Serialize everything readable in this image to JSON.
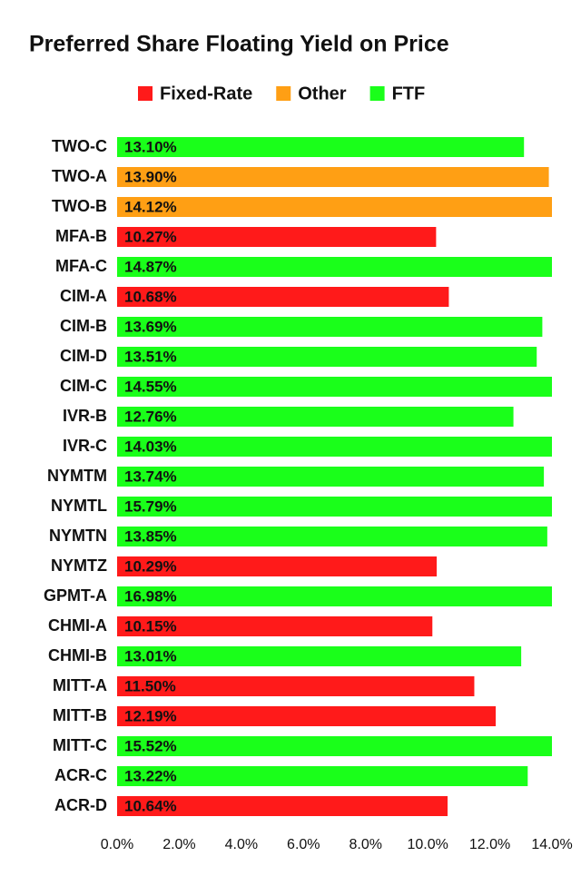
{
  "chart_data": {
    "type": "bar",
    "orientation": "horizontal",
    "title": "Preferred Share Floating Yield on Price",
    "categories": [
      "TWO-C",
      "TWO-A",
      "TWO-B",
      "MFA-B",
      "MFA-C",
      "CIM-A",
      "CIM-B",
      "CIM-D",
      "CIM-C",
      "IVR-B",
      "IVR-C",
      "NYMTM",
      "NYMTL",
      "NYMTN",
      "NYMTZ",
      "GPMT-A",
      "CHMI-A",
      "CHMI-B",
      "MITT-A",
      "MITT-B",
      "MITT-C",
      "ACR-C",
      "ACR-D"
    ],
    "series": [
      {
        "name": "Fixed-Rate",
        "color": "#ff1a1a",
        "values": [
          null,
          null,
          null,
          10.27,
          null,
          10.68,
          null,
          null,
          null,
          null,
          null,
          null,
          null,
          null,
          10.29,
          null,
          10.15,
          null,
          11.5,
          12.19,
          null,
          null,
          10.64
        ],
        "value_labels": [
          null,
          null,
          null,
          "10.27%",
          null,
          "10.68%",
          null,
          null,
          null,
          null,
          null,
          null,
          null,
          null,
          "10.29%",
          null,
          "10.15%",
          null,
          "11.50%",
          "12.19%",
          null,
          null,
          "10.64%"
        ]
      },
      {
        "name": "Other",
        "color": "#ff9f14",
        "values": [
          null,
          13.9,
          14.12,
          null,
          null,
          null,
          null,
          null,
          null,
          null,
          null,
          null,
          null,
          null,
          null,
          null,
          null,
          null,
          null,
          null,
          null,
          null,
          null
        ],
        "value_labels": [
          null,
          "13.90%",
          "14.12%",
          null,
          null,
          null,
          null,
          null,
          null,
          null,
          null,
          null,
          null,
          null,
          null,
          null,
          null,
          null,
          null,
          null,
          null,
          null,
          null
        ]
      },
      {
        "name": "FTF",
        "color": "#1aff1a",
        "values": [
          13.1,
          null,
          null,
          null,
          14.87,
          null,
          13.69,
          13.51,
          14.55,
          12.76,
          14.03,
          13.74,
          15.79,
          13.85,
          null,
          16.98,
          null,
          13.01,
          null,
          null,
          15.52,
          13.22,
          null
        ],
        "value_labels": [
          "13.10%",
          null,
          null,
          null,
          "14.87%",
          null,
          "13.69%",
          "13.51%",
          "14.55%",
          "12.76%",
          "14.03%",
          "13.74%",
          "15.79%",
          "13.85%",
          null,
          "16.98%",
          null,
          "13.01%",
          null,
          null,
          "15.52%",
          "13.22%",
          null
        ]
      }
    ],
    "xlim": [
      0,
      14
    ],
    "xticks": [
      {
        "value": 0,
        "label": "0.0%"
      },
      {
        "value": 2,
        "label": "2.0%"
      },
      {
        "value": 4,
        "label": "4.0%"
      },
      {
        "value": 6,
        "label": "6.0%"
      },
      {
        "value": 8,
        "label": "8.0%"
      },
      {
        "value": 10,
        "label": "10.0%"
      },
      {
        "value": 12,
        "label": "12.0%"
      },
      {
        "value": 14,
        "label": "14.0%"
      }
    ],
    "grid": false
  }
}
